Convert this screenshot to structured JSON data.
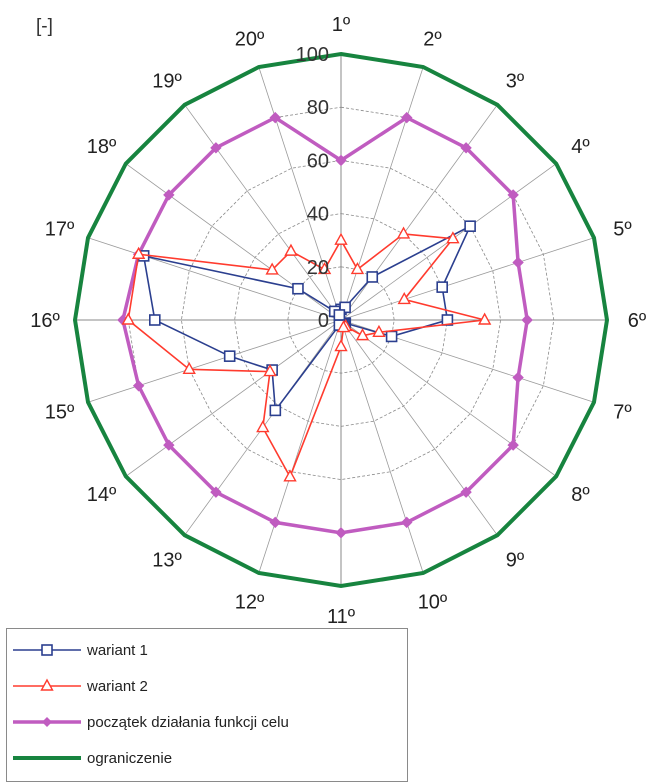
{
  "chart_data": {
    "type": "radar",
    "unit_label": "[-]",
    "categories": [
      "1º",
      "2º",
      "3º",
      "4º",
      "5º",
      "6º",
      "7º",
      "8º",
      "9º",
      "10º",
      "11º",
      "12º",
      "13º",
      "14º",
      "15º",
      "16º",
      "17º",
      "18º",
      "19º",
      "20º"
    ],
    "radial_ticks": [
      0,
      20,
      40,
      60,
      80,
      100
    ],
    "rmax": 100,
    "series": [
      {
        "name": "wariant 1",
        "color": "#2b3f8f",
        "marker": "square",
        "values": [
          4,
          5,
          20,
          60,
          40,
          40,
          20,
          2,
          2,
          2,
          2,
          2,
          42,
          32,
          44,
          70,
          78,
          20,
          4,
          2
        ]
      },
      {
        "name": "wariant 2",
        "color": "#ff3b2e",
        "marker": "triangle",
        "values": [
          30,
          20,
          40,
          52,
          25,
          54,
          15,
          10,
          3,
          3,
          10,
          62,
          50,
          33,
          60,
          80,
          80,
          32,
          32,
          20
        ]
      },
      {
        "name": "początek działania funkcji celu",
        "color": "#c05cc0",
        "marker": "diamond",
        "values": [
          60,
          80,
          80,
          80,
          70,
          70,
          70,
          80,
          80,
          80,
          80,
          80,
          80,
          80,
          80,
          82,
          80,
          80,
          80,
          80
        ]
      },
      {
        "name": "ograniczenie",
        "color": "#17843f",
        "marker": "none",
        "values": [
          100,
          100,
          100,
          100,
          100,
          100,
          100,
          100,
          100,
          100,
          100,
          100,
          100,
          100,
          100,
          100,
          100,
          100,
          100,
          100
        ]
      }
    ]
  }
}
